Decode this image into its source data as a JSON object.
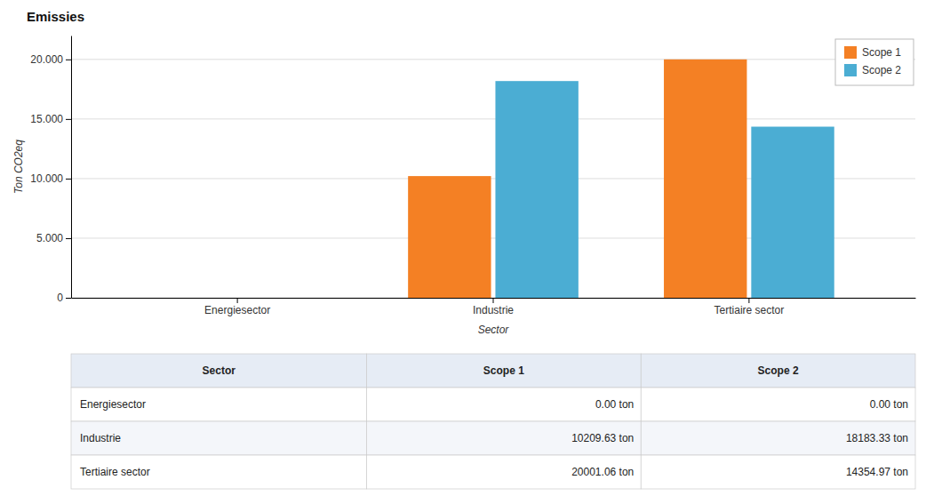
{
  "chart_data": {
    "type": "bar",
    "title": "Emissies",
    "xlabel": "Sector",
    "ylabel": "Ton CO2eq",
    "categories": [
      "Energiesector",
      "Industrie",
      "Tertiaire sector"
    ],
    "series": [
      {
        "name": "Scope 1",
        "color": "#F48024",
        "values": [
          0.0,
          10209.63,
          20001.06
        ]
      },
      {
        "name": "Scope 2",
        "color": "#4BADD3",
        "values": [
          0.0,
          18183.33,
          14354.97
        ]
      }
    ],
    "ylim": [
      0,
      22000
    ],
    "yticks": [
      0,
      {
        "value": 5000,
        "label": "5.000"
      },
      {
        "value": 10000,
        "label": "10.000"
      },
      {
        "value": 15000,
        "label": "15.000"
      },
      {
        "value": 20000,
        "label": "20.000"
      }
    ],
    "grid": true,
    "legend": "upper right",
    "table": {
      "header": [
        "Sector",
        "Scope 1",
        "Scope 2"
      ],
      "rows": [
        [
          "Energiesector",
          "0.00 ton",
          "0.00 ton"
        ],
        [
          "Industrie",
          "10209.63 ton",
          "18183.33 ton"
        ],
        [
          "Tertiaire sector",
          "20001.06 ton",
          "14354.97 ton"
        ]
      ]
    }
  }
}
